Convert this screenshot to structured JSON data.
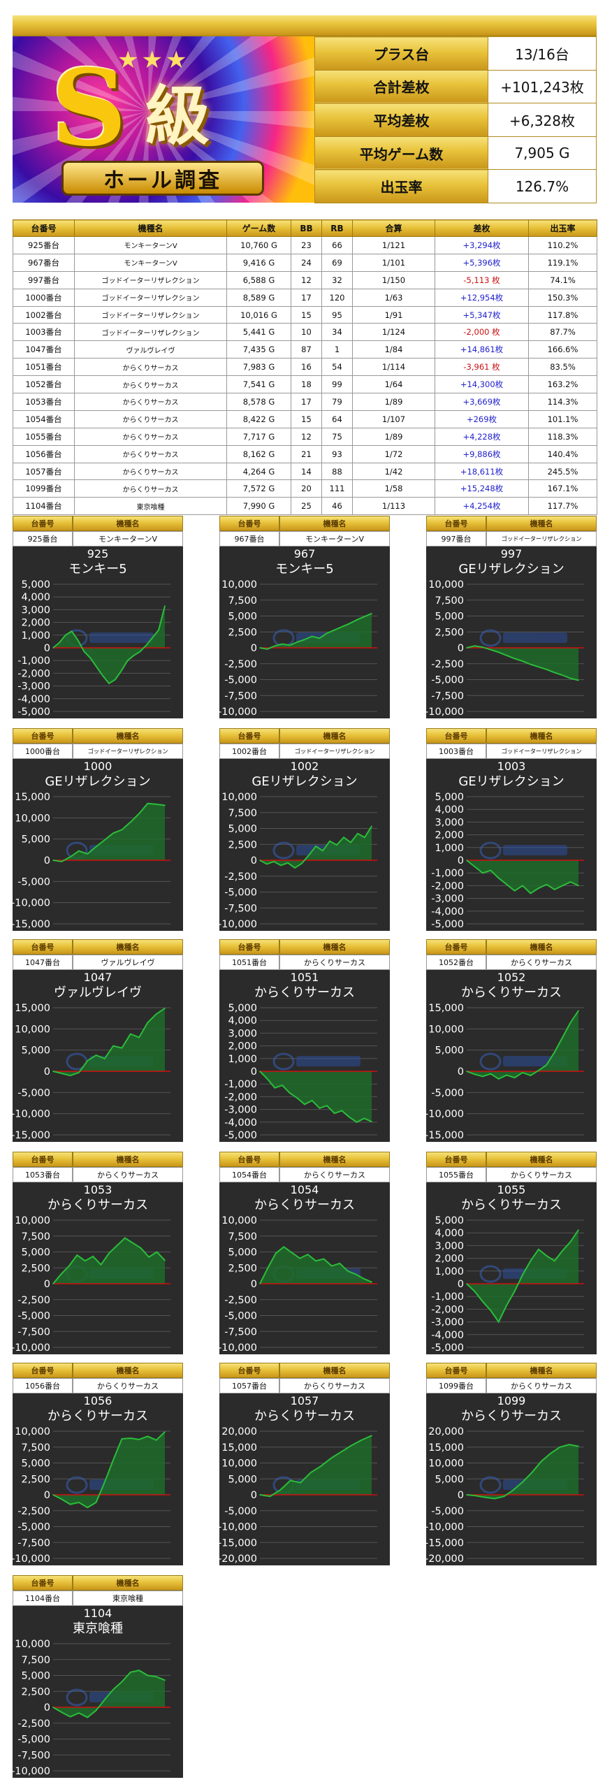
{
  "banner": {
    "letter": "S",
    "kyu": "級",
    "ribbon": "ホール調査"
  },
  "summary": [
    {
      "label": "プラス台",
      "value": "13/16台"
    },
    {
      "label": "合計差枚",
      "value": "+101,243枚"
    },
    {
      "label": "平均差枚",
      "value": "+6,328枚"
    },
    {
      "label": "平均ゲーム数",
      "value": "7,905 G"
    },
    {
      "label": "出玉率",
      "value": "126.7%"
    }
  ],
  "table": {
    "headers": [
      "台番号",
      "機種名",
      "ゲーム数",
      "BB",
      "RB",
      "合算",
      "差枚",
      "出玉率"
    ],
    "rows": [
      [
        "925番台",
        "モンキーターンV",
        "10,760 G",
        "23",
        "66",
        "1/121",
        "+3,294枚",
        "110.2%"
      ],
      [
        "967番台",
        "モンキーターンV",
        "9,416 G",
        "24",
        "69",
        "1/101",
        "+5,396枚",
        "119.1%"
      ],
      [
        "997番台",
        "ゴッドイーターリザレクション",
        "6,588 G",
        "12",
        "32",
        "1/150",
        "-5,113 枚",
        "74.1%"
      ],
      [
        "1000番台",
        "ゴッドイーターリザレクション",
        "8,589 G",
        "17",
        "120",
        "1/63",
        "+12,954枚",
        "150.3%"
      ],
      [
        "1002番台",
        "ゴッドイーターリザレクション",
        "10,016 G",
        "15",
        "95",
        "1/91",
        "+5,347枚",
        "117.8%"
      ],
      [
        "1003番台",
        "ゴッドイーターリザレクション",
        "5,441 G",
        "10",
        "34",
        "1/124",
        "-2,000 枚",
        "87.7%"
      ],
      [
        "1047番台",
        "ヴァルヴレイヴ",
        "7,435 G",
        "87",
        "1",
        "1/84",
        "+14,861枚",
        "166.6%"
      ],
      [
        "1051番台",
        "からくりサーカス",
        "7,983 G",
        "16",
        "54",
        "1/114",
        "-3,961 枚",
        "83.5%"
      ],
      [
        "1052番台",
        "からくりサーカス",
        "7,541 G",
        "18",
        "99",
        "1/64",
        "+14,300枚",
        "163.2%"
      ],
      [
        "1053番台",
        "からくりサーカス",
        "8,578 G",
        "17",
        "79",
        "1/89",
        "+3,669枚",
        "114.3%"
      ],
      [
        "1054番台",
        "からくりサーカス",
        "8,422 G",
        "15",
        "64",
        "1/107",
        "+269枚",
        "101.1%"
      ],
      [
        "1055番台",
        "からくりサーカス",
        "7,717 G",
        "12",
        "75",
        "1/89",
        "+4,228枚",
        "118.3%"
      ],
      [
        "1056番台",
        "からくりサーカス",
        "8,162 G",
        "21",
        "93",
        "1/72",
        "+9,886枚",
        "140.4%"
      ],
      [
        "1057番台",
        "からくりサーカス",
        "4,264 G",
        "14",
        "88",
        "1/42",
        "+18,611枚",
        "245.5%"
      ],
      [
        "1099番台",
        "からくりサーカス",
        "7,572 G",
        "20",
        "111",
        "1/58",
        "+15,248枚",
        "167.1%"
      ],
      [
        "1104番台",
        "東京喰種",
        "7,990 G",
        "25",
        "46",
        "1/113",
        "+4,254枚",
        "117.7%"
      ]
    ]
  },
  "card_header": {
    "num": "台番号",
    "model": "機種名"
  },
  "colors": {
    "line": "#2bbd3a",
    "fill": "#1f6b2a",
    "zero": "#d01010",
    "chart_bg": "#2b2b2b",
    "grid": "#555555"
  },
  "chart_data": [
    {
      "type": "area",
      "num": "925番台",
      "model": "モンキーターンV",
      "id": "925",
      "name": "モンキー5",
      "ylim": [
        -5000,
        5000
      ],
      "ticks": [
        5000,
        4000,
        3000,
        2000,
        1000,
        0,
        -1000,
        -2000,
        -3000,
        -4000,
        -5000
      ],
      "y": [
        0,
        400,
        1000,
        1300,
        600,
        -300,
        -800,
        -1500,
        -2200,
        -2800,
        -2500,
        -1800,
        -1000,
        -600,
        -300,
        200,
        800,
        1400,
        3294
      ]
    },
    {
      "type": "area",
      "num": "967番台",
      "model": "モンキーターンV",
      "id": "967",
      "name": "モンキー5",
      "ylim": [
        -10000,
        10000
      ],
      "ticks": [
        10000,
        7500,
        5000,
        2500,
        0,
        -2500,
        -5000,
        -7500,
        -10000
      ],
      "y": [
        0,
        -200,
        300,
        600,
        400,
        900,
        1300,
        1800,
        1500,
        2300,
        2800,
        3300,
        3800,
        4400,
        4900,
        5396
      ]
    },
    {
      "type": "area",
      "num": "997番台",
      "model": "ゴッドイーターリザレクション",
      "id": "997",
      "name": "GEリザレクション",
      "ylim": [
        -10000,
        10000
      ],
      "ticks": [
        10000,
        7500,
        5000,
        2500,
        0,
        -2500,
        -5000,
        -7500,
        -10000
      ],
      "y": [
        0,
        300,
        100,
        -300,
        -700,
        -1200,
        -1700,
        -2100,
        -2600,
        -3000,
        -3400,
        -3900,
        -4300,
        -4800,
        -5113
      ]
    },
    {
      "type": "area",
      "num": "1000番台",
      "model": "ゴッドイーターリザレクション",
      "id": "1000",
      "name": "GEリザレクション",
      "ylim": [
        -15000,
        15000
      ],
      "ticks": [
        15000,
        10000,
        5000,
        0,
        -5000,
        -10000,
        -15000
      ],
      "y": [
        0,
        -300,
        800,
        2200,
        1500,
        3200,
        4800,
        6400,
        7200,
        9000,
        11000,
        13400,
        13200,
        12954
      ]
    },
    {
      "type": "area",
      "num": "1002番台",
      "model": "ゴッドイーターリザレクション",
      "id": "1002",
      "name": "GEリザレクション",
      "ylim": [
        -10000,
        10000
      ],
      "ticks": [
        10000,
        7500,
        5000,
        2500,
        0,
        -2500,
        -5000,
        -7500,
        -10000
      ],
      "y": [
        0,
        -600,
        -200,
        -800,
        -400,
        -1200,
        -500,
        800,
        2200,
        1500,
        3000,
        2400,
        3600,
        2800,
        4200,
        3600,
        5347
      ]
    },
    {
      "type": "area",
      "num": "1003番台",
      "model": "ゴッドイーターリザレクション",
      "id": "1003",
      "name": "GEリザレクション",
      "ylim": [
        -5000,
        5000
      ],
      "ticks": [
        5000,
        4000,
        3000,
        2000,
        1000,
        0,
        -1000,
        -2000,
        -3000,
        -4000,
        -5000
      ],
      "y": [
        0,
        -500,
        -1000,
        -800,
        -1400,
        -1900,
        -2400,
        -2000,
        -2600,
        -2200,
        -1900,
        -2300,
        -2000,
        -1700,
        -2000
      ]
    },
    {
      "type": "area",
      "num": "1047番台",
      "model": "ヴァルヴレイヴ",
      "id": "1047",
      "name": "ヴァルヴレイヴ",
      "ylim": [
        -15000,
        15000
      ],
      "ticks": [
        15000,
        10000,
        5000,
        0,
        -5000,
        -10000,
        -15000
      ],
      "y": [
        0,
        -500,
        -1000,
        -300,
        2500,
        3800,
        3000,
        6000,
        5500,
        8800,
        8000,
        11500,
        13500,
        14861
      ]
    },
    {
      "type": "area",
      "num": "1051番台",
      "model": "からくりサーカス",
      "id": "1051",
      "name": "からくりサーカス",
      "ylim": [
        -5000,
        5000
      ],
      "ticks": [
        5000,
        4000,
        3000,
        2000,
        1000,
        0,
        -1000,
        -2000,
        -3000,
        -4000,
        -5000
      ],
      "y": [
        0,
        -600,
        -1300,
        -1100,
        -1700,
        -2100,
        -2600,
        -2300,
        -2900,
        -2700,
        -3300,
        -3100,
        -3600,
        -4000,
        -3700,
        -3961
      ]
    },
    {
      "type": "area",
      "num": "1052番台",
      "model": "からくりサーカス",
      "id": "1052",
      "name": "からくりサーカス",
      "ylim": [
        -15000,
        15000
      ],
      "ticks": [
        15000,
        10000,
        5000,
        0,
        -5000,
        -10000,
        -15000
      ],
      "y": [
        0,
        -700,
        -1200,
        -600,
        -1800,
        -900,
        -1500,
        -300,
        -1000,
        200,
        1500,
        4500,
        8000,
        11500,
        14300
      ]
    },
    {
      "type": "area",
      "num": "1053番台",
      "model": "からくりサーカス",
      "id": "1053",
      "name": "からくりサーカス",
      "ylim": [
        -10000,
        10000
      ],
      "ticks": [
        10000,
        7500,
        5000,
        2500,
        0,
        -2500,
        -5000,
        -7500,
        -10000
      ],
      "y": [
        0,
        1500,
        2800,
        4500,
        3600,
        4300,
        3000,
        4800,
        6000,
        7200,
        6400,
        5600,
        4200,
        5000,
        3669
      ]
    },
    {
      "type": "area",
      "num": "1054番台",
      "model": "からくりサーカス",
      "id": "1054",
      "name": "からくりサーカス",
      "ylim": [
        -10000,
        10000
      ],
      "ticks": [
        10000,
        7500,
        5000,
        2500,
        0,
        -2500,
        -5000,
        -7500,
        -10000
      ],
      "y": [
        0,
        2500,
        4800,
        5800,
        4900,
        4000,
        4600,
        3600,
        3900,
        2800,
        3200,
        2000,
        1500,
        800,
        269
      ]
    },
    {
      "type": "area",
      "num": "1055番台",
      "model": "からくりサーカス",
      "id": "1055",
      "name": "からくりサーカス",
      "ylim": [
        -5000,
        5000
      ],
      "ticks": [
        5000,
        4000,
        3000,
        2000,
        1000,
        0,
        -1000,
        -2000,
        -3000,
        -4000,
        -5000
      ],
      "y": [
        0,
        -600,
        -1400,
        -2100,
        -3000,
        -1700,
        -600,
        700,
        1800,
        2700,
        2200,
        1800,
        2600,
        3300,
        4228
      ]
    },
    {
      "type": "area",
      "num": "1056番台",
      "model": "からくりサーカス",
      "id": "1056",
      "name": "からくりサーカス",
      "ylim": [
        -10000,
        10000
      ],
      "ticks": [
        10000,
        7500,
        5000,
        2500,
        0,
        -2500,
        -5000,
        -7500,
        -10000
      ],
      "y": [
        0,
        -700,
        -1500,
        -1200,
        -2000,
        -1200,
        2000,
        5500,
        8800,
        8900,
        8700,
        9200,
        8600,
        9886
      ]
    },
    {
      "type": "area",
      "num": "1057番台",
      "model": "からくりサーカス",
      "id": "1057",
      "name": "からくりサーカス",
      "ylim": [
        -20000,
        20000
      ],
      "ticks": [
        20000,
        15000,
        10000,
        5000,
        0,
        -5000,
        -10000,
        -15000,
        -20000
      ],
      "y": [
        0,
        -500,
        1500,
        4500,
        3800,
        7000,
        9000,
        11500,
        13500,
        15500,
        17200,
        18611
      ]
    },
    {
      "type": "area",
      "num": "1099番台",
      "model": "からくりサーカス",
      "id": "1099",
      "name": "からくりサーカス",
      "ylim": [
        -20000,
        20000
      ],
      "ticks": [
        20000,
        15000,
        10000,
        5000,
        0,
        -5000,
        -10000,
        -15000,
        -20000
      ],
      "y": [
        0,
        -300,
        -800,
        -1200,
        -500,
        1500,
        4000,
        7000,
        10500,
        13000,
        15000,
        15800,
        15248
      ]
    },
    {
      "type": "area",
      "num": "1104番台",
      "model": "東京喰種",
      "id": "1104",
      "name": "東京喰種",
      "ylim": [
        -10000,
        10000
      ],
      "ticks": [
        10000,
        7500,
        5000,
        2500,
        0,
        -2500,
        -5000,
        -7500,
        -10000
      ],
      "y": [
        0,
        -800,
        -1500,
        -900,
        -1600,
        -500,
        1200,
        2800,
        4000,
        5500,
        5800,
        5000,
        4800,
        4254
      ]
    }
  ]
}
